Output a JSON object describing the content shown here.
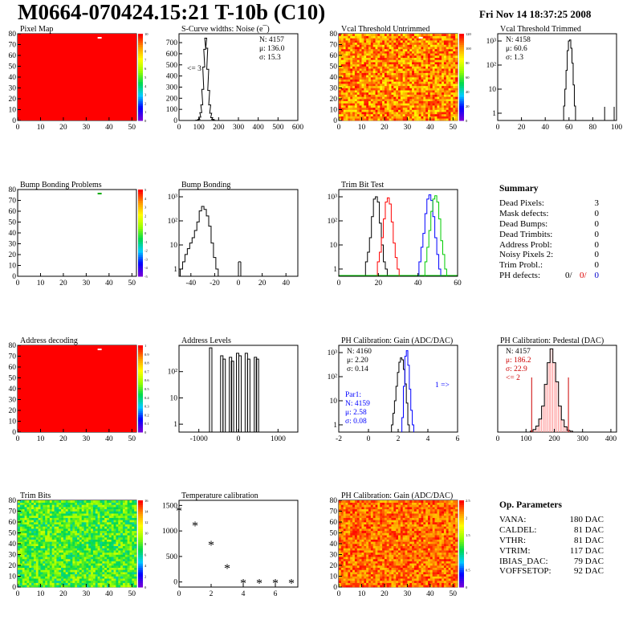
{
  "header": {
    "title": "M0664-070424.15:21 T-10b (C10)",
    "date": "Fri Nov 14 18:37:25 2008"
  },
  "panels": [
    {
      "id": "pixel-map",
      "title": "Pixel Map",
      "type": "heatmap",
      "x_ticks": [
        "0",
        "10",
        "20",
        "30",
        "40",
        "50"
      ],
      "y_ticks": [
        "0",
        "10",
        "20",
        "30",
        "40",
        "50",
        "60",
        "70",
        "80"
      ],
      "palette_ticks": [
        "0",
        "1",
        "2",
        "3",
        "4",
        "5",
        "6",
        "7",
        "8",
        "9",
        "10"
      ],
      "fill": "uniform-red",
      "dead_pixel": {
        "col": 35,
        "row": 76
      }
    },
    {
      "id": "scurve",
      "title": "S-Curve widths: Noise (e¯)",
      "type": "histogram",
      "x_ticks": [
        "0",
        "100",
        "200",
        "300",
        "400",
        "500",
        "600"
      ],
      "y_ticks": [
        "0",
        "100",
        "200",
        "300",
        "400",
        "500",
        "600",
        "700"
      ],
      "stats": [
        "N: 4157",
        "μ: 136.0",
        "σ: 15.3"
      ],
      "annotation": "<= 3"
    },
    {
      "id": "vcal-untrimmed",
      "title": "Vcal Threshold Untrimmed",
      "type": "heatmap",
      "x_ticks": [
        "0",
        "10",
        "20",
        "30",
        "40",
        "50"
      ],
      "y_ticks": [
        "0",
        "10",
        "20",
        "30",
        "40",
        "50",
        "60",
        "70",
        "80"
      ],
      "palette_ticks": [
        "0",
        "20",
        "40",
        "60",
        "80",
        "100",
        "120"
      ]
    },
    {
      "id": "vcal-trimmed",
      "title": "Vcal Threshold Trimmed",
      "type": "histogram",
      "log": true,
      "x_ticks": [
        "0",
        "20",
        "40",
        "60",
        "80",
        "100"
      ],
      "y_ticks": [
        "1",
        "10",
        "10²",
        "10³"
      ],
      "stats": [
        "N: 4158",
        "μ: 60.6",
        "σ: 1.3"
      ]
    },
    {
      "id": "bump-map",
      "title": "Bump Bonding Problems",
      "type": "heatmap",
      "x_ticks": [
        "0",
        "10",
        "20",
        "30",
        "40",
        "50"
      ],
      "y_ticks": [
        "0",
        "10",
        "20",
        "30",
        "40",
        "50",
        "60",
        "70",
        "80"
      ],
      "palette_ticks": [
        "-5",
        "-4",
        "-3",
        "-2",
        "-1",
        "0",
        "1",
        "2",
        "3",
        "4",
        "5"
      ]
    },
    {
      "id": "bump-bonding",
      "title": "Bump Bonding",
      "type": "histogram",
      "log": true,
      "x_ticks": [
        "-40",
        "-20",
        "0",
        "20",
        "40"
      ],
      "y_ticks": [
        "1",
        "10",
        "10²",
        "10³"
      ]
    },
    {
      "id": "trim-bit",
      "title": "Trim Bit Test",
      "type": "histogram",
      "log": true,
      "x_ticks": [
        "0",
        "20",
        "40",
        "60"
      ],
      "y_ticks": [
        "1",
        "10",
        "10²",
        "10³"
      ]
    },
    {
      "id": "address-decoding",
      "title": "Address decoding",
      "type": "heatmap",
      "x_ticks": [
        "0",
        "10",
        "20",
        "30",
        "40",
        "50"
      ],
      "y_ticks": [
        "0",
        "10",
        "20",
        "30",
        "40",
        "50",
        "60",
        "70",
        "80"
      ],
      "palette_ticks": [
        "0",
        "0.1",
        "0.2",
        "0.3",
        "0.4",
        "0.5",
        "0.6",
        "0.7",
        "0.8",
        "0.9",
        "1"
      ]
    },
    {
      "id": "address-levels",
      "title": "Address Levels",
      "type": "histogram",
      "log": true,
      "x_ticks": [
        "-1000",
        "0",
        "1000"
      ],
      "y_ticks": [
        "1",
        "10",
        "10²"
      ]
    },
    {
      "id": "ph-gain",
      "title": "PH Calibration: Gain (ADC/DAC)",
      "type": "histogram",
      "log": true,
      "x_ticks": [
        "-2",
        "0",
        "2",
        "4",
        "6"
      ],
      "y_ticks": [
        "1",
        "10",
        "10²",
        "10³"
      ],
      "stats": [
        "N: 4160",
        "μ: 2.20",
        "σ: 0.14"
      ],
      "stats2": [
        "Par1:",
        "N: 4159",
        "μ: 2.58",
        "σ: 0.08"
      ],
      "annotation": "1 =>"
    },
    {
      "id": "ph-pedestal",
      "title": "PH Calibration: Pedestal (DAC)",
      "type": "histogram",
      "x_ticks": [
        "0",
        "100",
        "200",
        "300",
        "400"
      ],
      "stats": [
        "N: 4157"
      ],
      "stats_red": [
        "μ: 186.2",
        "σ: 22.9",
        "<= 2"
      ]
    },
    {
      "id": "trim-bits",
      "title": "Trim Bits",
      "type": "heatmap",
      "x_ticks": [
        "0",
        "10",
        "20",
        "30",
        "40",
        "50"
      ],
      "y_ticks": [
        "0",
        "10",
        "20",
        "30",
        "40",
        "50",
        "60",
        "70",
        "80"
      ],
      "palette_ticks": [
        "0",
        "2",
        "4",
        "6",
        "8",
        "10",
        "12",
        "14",
        "16"
      ]
    },
    {
      "id": "temperature",
      "title": "Temperature calibration",
      "type": "scatter",
      "x_ticks": [
        "0",
        "2",
        "4",
        "6"
      ],
      "y_ticks": [
        "0",
        "500",
        "1000",
        "1500"
      ]
    },
    {
      "id": "ph-gain-map",
      "title": "PH Calibration: Gain (ADC/DAC)",
      "type": "heatmap",
      "x_ticks": [
        "0",
        "10",
        "20",
        "30",
        "40",
        "50"
      ],
      "y_ticks": [
        "0",
        "10",
        "20",
        "30",
        "40",
        "50",
        "60",
        "70",
        "80"
      ],
      "palette_ticks": [
        "0",
        "0.5",
        "1",
        "1.5",
        "2",
        "2.5"
      ]
    }
  ],
  "summary": {
    "title": "Summary",
    "rows": [
      {
        "label": "Dead Pixels:",
        "value": "3"
      },
      {
        "label": "Mask defects:",
        "value": "0"
      },
      {
        "label": "Dead Bumps:",
        "value": "0"
      },
      {
        "label": "Dead Trimbits:",
        "value": "0"
      },
      {
        "label": "Address Probl:",
        "value": "0"
      },
      {
        "label": "Noisy Pixels 2:",
        "value": "0"
      },
      {
        "label": "Trim Probl.:",
        "value": "0"
      }
    ],
    "ph_defects": {
      "label": "PH defects:",
      "v1": "0/",
      "v2": "0/",
      "v3": "0"
    }
  },
  "op_parameters": {
    "title": "Op. Parameters",
    "rows": [
      {
        "label": "VANA:",
        "value": "180 DAC"
      },
      {
        "label": "CALDEL:",
        "value": "81 DAC"
      },
      {
        "label": "VTHR:",
        "value": "81 DAC"
      },
      {
        "label": "VTRIM:",
        "value": "117 DAC"
      },
      {
        "label": "IBIAS_DAC:",
        "value": "79 DAC"
      },
      {
        "label": "VOFFSETOP:",
        "value": "92 DAC"
      }
    ]
  },
  "chart_data": [
    {
      "type": "heatmap",
      "title": "Pixel Map",
      "xlim": [
        0,
        52
      ],
      "ylim": [
        0,
        80
      ],
      "zlim": [
        0,
        10
      ],
      "values": "all 10 (uniform) except dead pixel near col 35 row 76"
    },
    {
      "type": "bar",
      "title": "S-Curve widths: Noise (e¯)",
      "xlim": [
        0,
        600
      ],
      "ylim": [
        0,
        780
      ],
      "x": [
        80,
        90,
        100,
        105,
        110,
        115,
        120,
        125,
        130,
        135,
        140,
        145,
        150,
        155,
        160,
        165,
        170,
        175,
        180,
        190
      ],
      "values": [
        0,
        3,
        10,
        30,
        70,
        140,
        280,
        480,
        640,
        740,
        650,
        460,
        270,
        140,
        65,
        25,
        10,
        4,
        1,
        0
      ]
    },
    {
      "type": "heatmap",
      "title": "Vcal Threshold Untrimmed",
      "xlim": [
        0,
        52
      ],
      "ylim": [
        0,
        80
      ],
      "zlim": [
        0,
        130
      ]
    },
    {
      "type": "bar",
      "title": "Vcal Threshold Trimmed",
      "xlim": [
        0,
        100
      ],
      "ylim": [
        0.5,
        2000
      ],
      "x": [
        56,
        57,
        58,
        59,
        60,
        61,
        62,
        63,
        64,
        65,
        90,
        98
      ],
      "values": [
        2,
        10,
        60,
        400,
        1000,
        1100,
        500,
        120,
        15,
        2,
        1,
        1
      ]
    },
    {
      "type": "heatmap",
      "title": "Bump Bonding Problems",
      "xlim": [
        0,
        52
      ],
      "ylim": [
        0,
        80
      ],
      "zlim": [
        -5,
        5
      ]
    },
    {
      "type": "bar",
      "title": "Bump Bonding",
      "xlim": [
        -50,
        50
      ],
      "ylim": [
        0.5,
        2000
      ],
      "x": [
        -48,
        -46,
        -44,
        -42,
        -40,
        -38,
        -36,
        -34,
        -32,
        -30,
        -28,
        -26,
        -24,
        -22,
        -20,
        -18,
        0,
        2
      ],
      "values": [
        1,
        2,
        4,
        7,
        12,
        20,
        40,
        90,
        260,
        400,
        300,
        160,
        60,
        12,
        3,
        1,
        2,
        2
      ]
    },
    {
      "type": "line",
      "title": "Trim Bit Test",
      "xlim": [
        0,
        60
      ],
      "ylim": [
        0.5,
        2000
      ],
      "series": [
        {
          "color": "#000000",
          "x": [
            14,
            15,
            16,
            17,
            18,
            19,
            20,
            21,
            22,
            23,
            24
          ],
          "values": [
            2,
            5,
            20,
            150,
            800,
            1000,
            600,
            80,
            10,
            2,
            1
          ]
        },
        {
          "color": "#ff0000",
          "x": [
            20,
            21,
            22,
            23,
            24,
            25,
            26,
            27,
            28,
            29,
            30
          ],
          "values": [
            2,
            5,
            20,
            120,
            600,
            900,
            500,
            90,
            12,
            3,
            1
          ]
        },
        {
          "color": "#0000ff",
          "x": [
            41,
            42,
            43,
            44,
            45,
            46,
            47,
            48,
            49,
            50,
            51
          ],
          "values": [
            2,
            8,
            30,
            200,
            800,
            1200,
            700,
            150,
            20,
            4,
            1
          ]
        },
        {
          "color": "#00cc00",
          "x": [
            44,
            45,
            46,
            47,
            48,
            49,
            50,
            51,
            52,
            53,
            54
          ],
          "values": [
            2,
            8,
            40,
            250,
            800,
            1100,
            600,
            120,
            15,
            4,
            1
          ]
        }
      ]
    },
    {
      "type": "heatmap",
      "title": "Address decoding",
      "xlim": [
        0,
        52
      ],
      "ylim": [
        0,
        80
      ],
      "zlim": [
        0,
        1
      ]
    },
    {
      "type": "bar",
      "title": "Address Levels",
      "xlim": [
        -1500,
        1500
      ],
      "ylim": [
        0.5,
        1000
      ],
      "x": [
        -700,
        -420,
        -360,
        -200,
        -150,
        -20,
        40,
        200,
        260,
        430,
        480
      ],
      "values": [
        800,
        400,
        300,
        350,
        250,
        500,
        400,
        500,
        300,
        350,
        300
      ]
    },
    {
      "type": "bar",
      "title": "PH Calibration: Gain (ADC/DAC)",
      "xlim": [
        -2,
        6
      ],
      "ylim": [
        0.5,
        2000
      ],
      "series": [
        {
          "name": "",
          "color": "#000000",
          "x": [
            1.6,
            1.7,
            1.8,
            1.9,
            2.0,
            2.1,
            2.2,
            2.3,
            2.4,
            2.5,
            2.6,
            2.7
          ],
          "values": [
            1,
            3,
            10,
            40,
            150,
            400,
            600,
            500,
            200,
            50,
            8,
            1
          ]
        },
        {
          "name": "Par1",
          "color": "#0000ff",
          "x": [
            2.3,
            2.4,
            2.5,
            2.6,
            2.7,
            2.8,
            2.9,
            3.0
          ],
          "values": [
            2,
            40,
            700,
            1200,
            300,
            30,
            4,
            1
          ]
        }
      ]
    },
    {
      "type": "bar",
      "title": "PH Calibration: Pedestal (DAC)",
      "xlim": [
        0,
        420
      ],
      "ylim": [
        0,
        100
      ],
      "x": [
        120,
        130,
        140,
        150,
        160,
        170,
        180,
        190,
        200,
        210,
        220,
        230,
        240,
        250,
        260
      ],
      "values": [
        1,
        3,
        7,
        15,
        30,
        55,
        80,
        96,
        80,
        58,
        30,
        14,
        6,
        2,
        1
      ]
    },
    {
      "type": "heatmap",
      "title": "Trim Bits",
      "xlim": [
        0,
        52
      ],
      "ylim": [
        0,
        80
      ],
      "zlim": [
        0,
        16
      ]
    },
    {
      "type": "scatter",
      "title": "Temperature calibration",
      "xlim": [
        0,
        7.4
      ],
      "ylim": [
        -100,
        1600
      ],
      "x": [
        0,
        1,
        2,
        3,
        4,
        5,
        6,
        7
      ],
      "values": [
        1390,
        1100,
        720,
        260,
        -30,
        -30,
        -30,
        -30
      ]
    },
    {
      "type": "heatmap",
      "title": "PH Calibration: Gain (ADC/DAC)",
      "xlim": [
        0,
        52
      ],
      "ylim": [
        0,
        80
      ],
      "zlim": [
        0,
        2.6
      ]
    }
  ]
}
